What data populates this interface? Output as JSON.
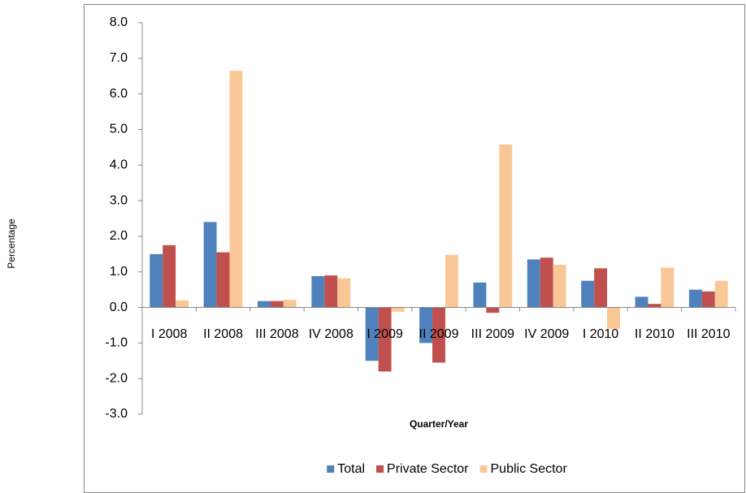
{
  "chart_data": {
    "type": "bar",
    "y_axis_label": "Percentage",
    "x_axis_label": "Quarter/Year",
    "categories": [
      "I 2008",
      "II 2008",
      "III 2008",
      "IV 2008",
      "I 2009",
      "II 2009",
      "III 2009",
      "IV 2009",
      "I 2010",
      "II 2010",
      "III 2010"
    ],
    "series": [
      {
        "name": "Total",
        "color": "#4f81bd",
        "values": [
          1.5,
          2.4,
          0.18,
          0.88,
          -1.5,
          -1.0,
          0.7,
          1.35,
          0.75,
          0.3,
          0.5
        ]
      },
      {
        "name": "Private Sector",
        "color": "#c0504d",
        "values": [
          1.75,
          1.55,
          0.18,
          0.9,
          -1.8,
          -1.55,
          -0.15,
          1.4,
          1.1,
          0.1,
          0.45
        ]
      },
      {
        "name": "Public Sector",
        "color": "#fac896",
        "values": [
          0.2,
          6.65,
          0.22,
          0.82,
          -0.12,
          1.48,
          4.58,
          1.2,
          -0.6,
          1.12,
          0.75
        ]
      }
    ],
    "ylim": [
      -3,
      8
    ],
    "yticks": [
      {
        "value": -3,
        "label": "-3.0"
      },
      {
        "value": -2,
        "label": "-2.0"
      },
      {
        "value": -1,
        "label": "-1.0"
      },
      {
        "value": 0,
        "label": "0.0"
      },
      {
        "value": 1,
        "label": "1.0"
      },
      {
        "value": 2,
        "label": "2.0"
      },
      {
        "value": 3,
        "label": "3.0"
      },
      {
        "value": 4,
        "label": "4.0"
      },
      {
        "value": 5,
        "label": "5.0"
      },
      {
        "value": 6,
        "label": "6.0"
      },
      {
        "value": 7,
        "label": "7.0"
      },
      {
        "value": 8,
        "label": "8.0"
      }
    ],
    "grid": false,
    "legend": "bottom"
  }
}
